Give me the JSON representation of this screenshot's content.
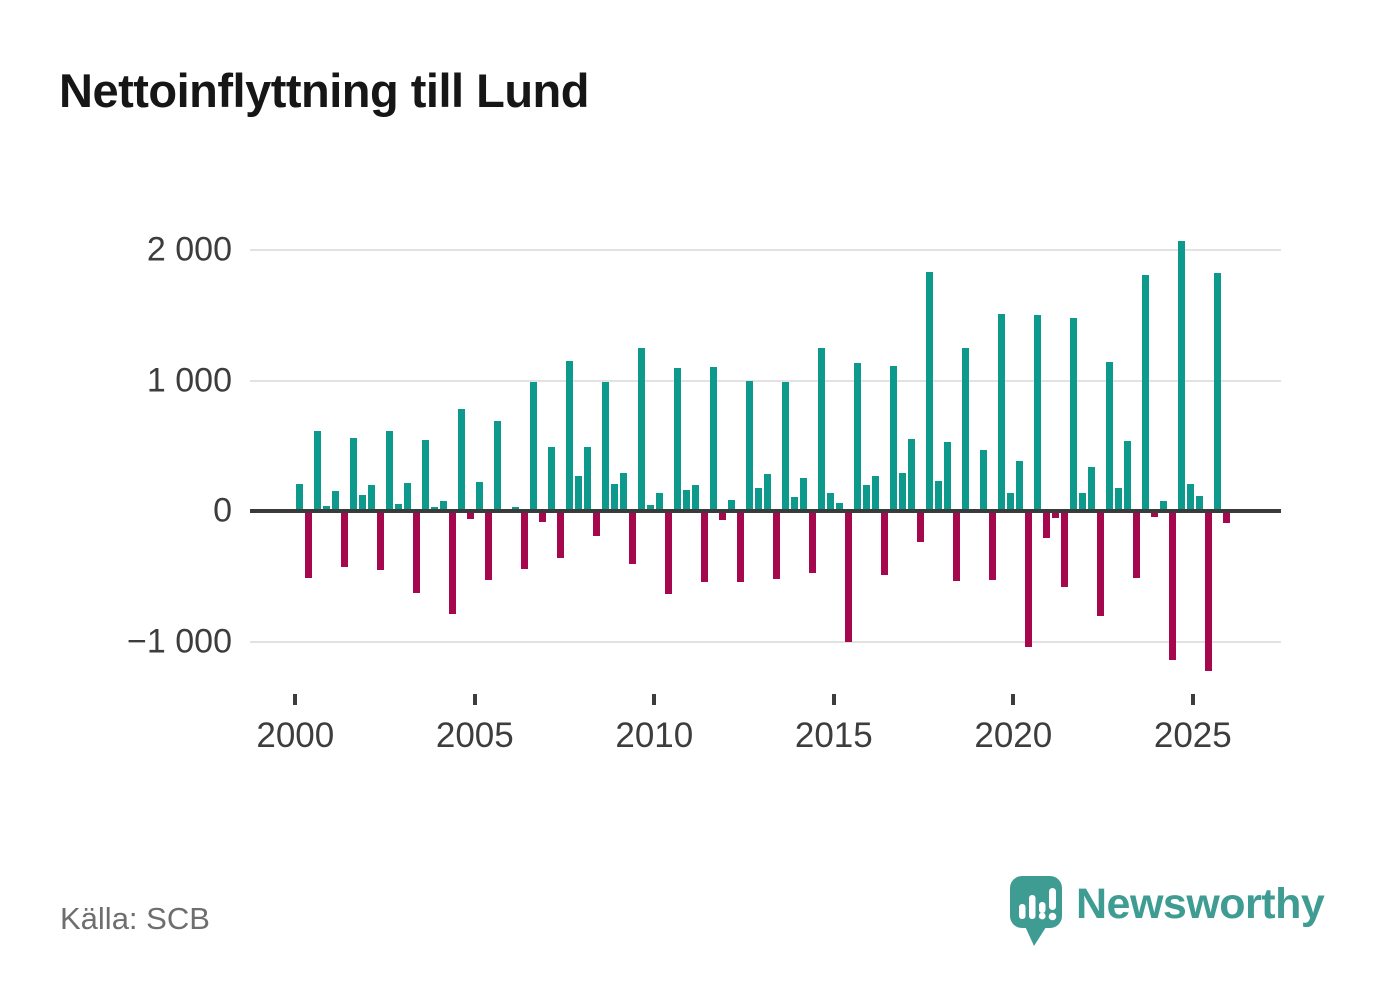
{
  "title": "Nettoinflyttning till Lund",
  "source": "Källa: SCB",
  "branding": {
    "name": "Newsworthy",
    "color": "#3f9c93"
  },
  "colors": {
    "positive_bar": "#0d9a8d",
    "negative_bar": "#a5084c",
    "axis_line": "#3a3a3a",
    "gridline": "#e2e2e2",
    "tick_text": "#3d3d3d",
    "source_text": "#6e6e6e"
  },
  "chart_data": {
    "type": "bar",
    "title": "Nettoinflyttning till Lund",
    "xlabel": "",
    "ylabel": "",
    "frequency": "quarterly",
    "start_period": "2000Q1",
    "end_period": "2025Q4",
    "quarters_per_year": 4,
    "grid": "horizontal",
    "legend": "none",
    "ylim": [
      -1450,
      2250
    ],
    "y_ticks": [
      2000,
      1000,
      0,
      -1000
    ],
    "y_tick_labels": [
      "2 000",
      "1 000",
      "0",
      "−1 000"
    ],
    "x_tick_years": [
      2000,
      2005,
      2010,
      2015,
      2020,
      2025
    ],
    "x_tick_labels": [
      "2000",
      "2005",
      "2010",
      "2015",
      "2020",
      "2025"
    ],
    "series": [
      {
        "name": "Nettoinflyttning",
        "positive_color": "#0d9a8d",
        "negative_color": "#a5084c",
        "values": [
          210,
          -510,
          610,
          40,
          150,
          -430,
          560,
          120,
          200,
          -450,
          610,
          50,
          215,
          -630,
          545,
          30,
          80,
          -790,
          780,
          -65,
          225,
          -530,
          690,
          0,
          30,
          -445,
          985,
          -85,
          490,
          -360,
          1150,
          270,
          490,
          -190,
          990,
          210,
          290,
          -405,
          1250,
          45,
          135,
          -635,
          1095,
          160,
          200,
          -545,
          1105,
          -70,
          85,
          -545,
          995,
          180,
          280,
          -520,
          990,
          110,
          250,
          -475,
          1250,
          140,
          65,
          -1005,
          1135,
          200,
          270,
          -490,
          1110,
          290,
          550,
          -240,
          1830,
          230,
          525,
          -535,
          1250,
          0,
          465,
          -525,
          1510,
          135,
          385,
          -1040,
          1500,
          -210,
          -50,
          -580,
          1480,
          135,
          335,
          -805,
          1145,
          180,
          540,
          -510,
          1805,
          -45,
          75,
          -1145,
          2070,
          205,
          115,
          -1225,
          1825,
          -90
        ]
      }
    ]
  }
}
